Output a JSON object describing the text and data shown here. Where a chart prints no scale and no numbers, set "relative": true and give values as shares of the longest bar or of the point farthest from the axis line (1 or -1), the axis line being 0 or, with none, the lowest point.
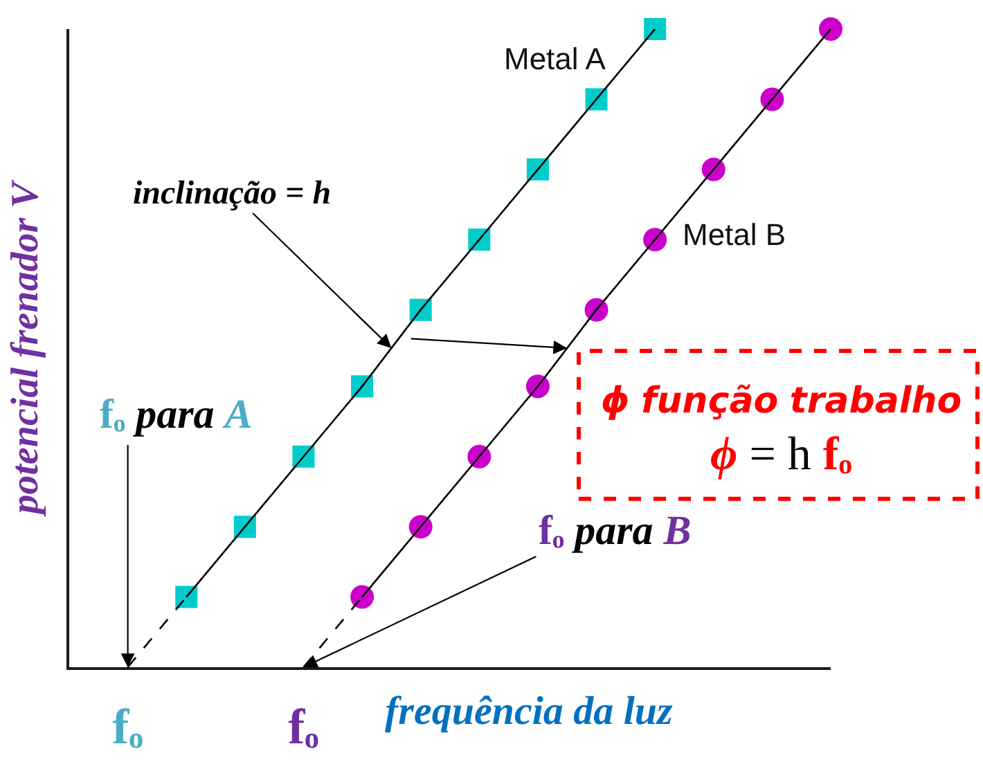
{
  "chart_data": {
    "type": "scatter",
    "relative": true,
    "xlabel": "frequência da luz",
    "ylabel": "potencial frenador V",
    "categories": [
      null,
      "fₒ",
      null,
      null,
      "fₒ",
      null,
      null,
      null,
      null,
      null,
      null,
      null,
      null,
      null
    ],
    "tick_labels": "x",
    "legend": false,
    "series": [
      {
        "name": "Metal A",
        "color": "#00cccc",
        "marker": "square",
        "values": [
          null,
          null,
          0.11,
          0.22,
          0.33,
          0.44,
          0.56,
          0.67,
          0.78,
          0.89,
          1,
          null,
          null,
          null
        ]
      },
      {
        "name": "Metal B",
        "color": "#cc00cc",
        "marker": "circle",
        "values": [
          null,
          null,
          null,
          null,
          null,
          0.11,
          0.22,
          0.33,
          0.44,
          0.56,
          0.67,
          0.78,
          0.89,
          1
        ]
      },
      {
        "type": "line",
        "color": "#000000",
        "line_style": "solid",
        "values": [
          null,
          null,
          0.11,
          0.22,
          0.33,
          0.44,
          0.56,
          0.67,
          0.78,
          0.89,
          1,
          null,
          null,
          null
        ]
      },
      {
        "type": "line",
        "color": "#000000",
        "line_style": "solid",
        "values": [
          null,
          null,
          null,
          null,
          null,
          0.11,
          0.22,
          0.33,
          0.44,
          0.56,
          0.67,
          0.78,
          0.89,
          1
        ]
      },
      {
        "type": "line",
        "color": "#000000",
        "line_style": "dashed",
        "values": [
          null,
          0,
          0.11,
          null,
          null,
          null,
          null,
          null,
          null,
          null,
          null,
          null,
          null,
          null
        ]
      },
      {
        "type": "line",
        "color": "#000000",
        "line_style": "dashed",
        "values": [
          null,
          null,
          null,
          null,
          0,
          0.11,
          null,
          null,
          null,
          null,
          null,
          null,
          null,
          null
        ]
      }
    ],
    "annotations": [
      "inclinação = h",
      "fₒ para A",
      "fₒ para B",
      "ϕ função trabalho",
      "ϕ = h fₒ"
    ]
  }
}
